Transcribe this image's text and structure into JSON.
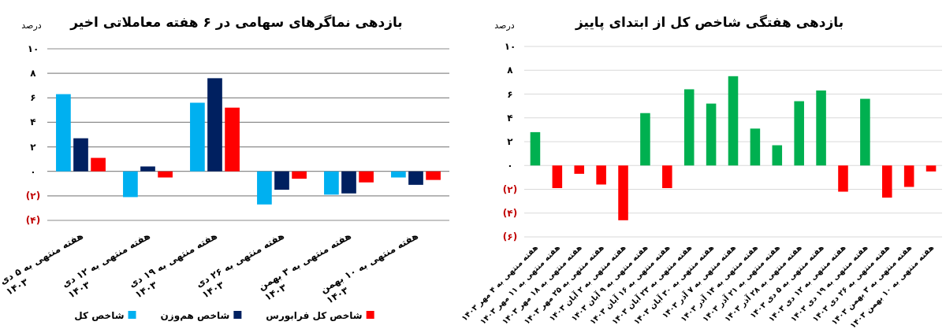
{
  "chart_data": [
    {
      "type": "bar",
      "title": "بازدهی نماگرهای سهامی در ۶ هفته معاملاتی اخیر",
      "ylabel": "درصد",
      "categories": [
        "هفته منتهی به ۵ دی ۱۴۰۳",
        "هفته منتهی به ۱۲ دی ۱۴۰۳",
        "هفته منتهی به ۱۹ دی ۱۴۰۳",
        "هفته منتهی به ۲۶ دی ۱۴۰۳",
        "هفته منتهی به ۳ بهمن ۱۴۰۳",
        "هفته منتهی به ۱۰ بهمن ۱۴۰۳"
      ],
      "series": [
        {
          "name": "شاخص کل",
          "color": "#00b0f0",
          "values": [
            6.3,
            -2.1,
            5.6,
            -2.7,
            -1.9,
            -0.5
          ]
        },
        {
          "name": "شاخص هم‌وزن",
          "color": "#002060",
          "values": [
            2.7,
            0.4,
            7.6,
            -1.5,
            -1.8,
            -1.1
          ]
        },
        {
          "name": "شاخص کل فرابورس",
          "color": "#ff0000",
          "values": [
            1.1,
            -0.5,
            5.2,
            -0.6,
            -0.9,
            -0.7
          ]
        }
      ],
      "ylim": [
        -4,
        10
      ],
      "yticks": [
        {
          "value": -4,
          "label": "(۴)"
        },
        {
          "value": -2,
          "label": "(۲)"
        },
        {
          "value": 0,
          "label": "۰"
        },
        {
          "value": 2,
          "label": "۲"
        },
        {
          "value": 4,
          "label": "۴"
        },
        {
          "value": 6,
          "label": "۶"
        },
        {
          "value": 8,
          "label": "۸"
        },
        {
          "value": 10,
          "label": "۱۰"
        }
      ],
      "grid": "y",
      "legend": "bottom"
    },
    {
      "type": "bar",
      "title": "بازدهی هفتگی شاخص کل از ابتدای پاییز",
      "ylabel": "درصد",
      "categories": [
        "هفته منتهی به ۴ مهر ۱۴۰۳",
        "هفته منتهی به ۱۱ مهر ۱۴۰۳",
        "هفته منتهی به ۱۸ مهر ۱۴۰۳",
        "هفته منتهی به ۲۵ مهر ۱۴۰۳",
        "هفته منتهی به ۲ آبان ۱۴۰۳",
        "هفته منتهی به ۹ آبان ۱۴۰۳",
        "هفته منتهی به ۱۶ آبان ۱۴۰۳",
        "هفته منتهی به ۲۳ آبان ۱۴۰۳",
        "هفته منتهی به ۳۰ آبان ۱۴۰۳",
        "هفته منتهی به ۷ آذر ۱۴۰۳",
        "هفته منتهی به ۱۴ آذر ۱۴۰۳",
        "هفته منتهی به ۲۱ آذر ۱۴۰۳",
        "هفته منتهی به ۲۸ آذر ۱۴۰۳",
        "هفته منتهی به ۵ دی ۱۴۰۳",
        "هفته منتهی به ۱۲ دی ۱۴۰۳",
        "هفته منتهی به ۱۹ دی ۱۴۰۳",
        "هفته منتهی به ۲۶ دی ۱۴۰۳",
        "هفته منتهی به ۳ بهمن ۱۴۰۳",
        "هفته منتهی به ۱۰ بهمن ۱۴۰۳"
      ],
      "values": [
        2.8,
        -1.9,
        -0.7,
        -1.6,
        -4.6,
        4.4,
        -1.9,
        6.4,
        5.2,
        7.5,
        3.1,
        1.7,
        5.4,
        6.3,
        -2.2,
        5.6,
        -2.7,
        -1.8,
        -0.5
      ],
      "colors": [
        "#00b050",
        "#ff0000",
        "#ff0000",
        "#ff0000",
        "#ff0000",
        "#00b050",
        "#ff0000",
        "#00b050",
        "#00b050",
        "#00b050",
        "#00b050",
        "#00b050",
        "#00b050",
        "#00b050",
        "#ff0000",
        "#00b050",
        "#ff0000",
        "#ff0000",
        "#ff0000"
      ],
      "ylim": [
        -6,
        10
      ],
      "yticks": [
        {
          "value": -6,
          "label": "(۶)"
        },
        {
          "value": -4,
          "label": "(۴)"
        },
        {
          "value": -2,
          "label": "(۲)"
        },
        {
          "value": 0,
          "label": "۰"
        },
        {
          "value": 2,
          "label": "۲"
        },
        {
          "value": 4,
          "label": "۴"
        },
        {
          "value": 6,
          "label": "۶"
        },
        {
          "value": 8,
          "label": "۸"
        },
        {
          "value": 10,
          "label": "۱۰"
        }
      ],
      "grid": "y"
    }
  ]
}
